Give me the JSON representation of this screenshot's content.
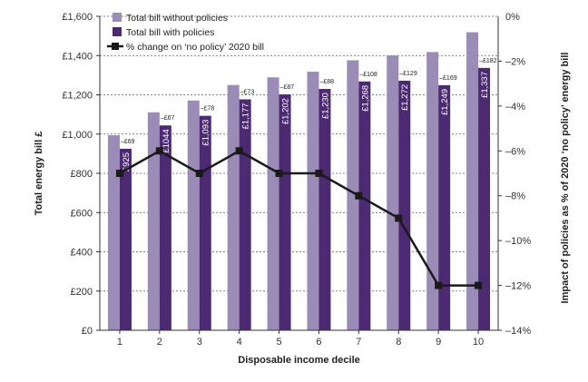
{
  "chart_data": {
    "type": "bar",
    "categories": [
      "1",
      "2",
      "3",
      "4",
      "5",
      "6",
      "7",
      "8",
      "9",
      "10"
    ],
    "xlabel": "Disposable income decile",
    "ylabel": "Total energy bill £",
    "y2label": "Impact of policies as % of 2020 ‘no policy’ energy bill",
    "ylim": [
      0,
      1600
    ],
    "y2lim": [
      -14,
      0
    ],
    "yticks": [
      "£0",
      "£200",
      "£400",
      "£600",
      "£800",
      "£1,000",
      "£1,200",
      "£1,400",
      "£1,600"
    ],
    "y2ticks": [
      "0%",
      "–2%",
      "–4%",
      "–6%",
      "–8%",
      "–10%",
      "–12%",
      "–14%"
    ],
    "legend_position": "top-left",
    "grid": "horizontal dashed",
    "series": [
      {
        "name": "Total bill without policies",
        "color": "#9a8cb6",
        "values": [
          994,
          1111,
          1171,
          1250,
          1289,
          1318,
          1376,
          1401,
          1418,
          1519
        ]
      },
      {
        "name": "Total bill with policies",
        "color": "#4b2a72",
        "values": [
          925,
          1044,
          1093,
          1177,
          1202,
          1230,
          1268,
          1272,
          1249,
          1337
        ],
        "labels": [
          "£925",
          "£1044",
          "£1,093",
          "£1,177",
          "£1,202",
          "£1,230",
          "£1,268",
          "£1,272",
          "£1,249",
          "£1,337"
        ]
      },
      {
        "name": "% change on ‘no policy’ 2020 bill",
        "type": "line",
        "axis": "right",
        "color": "#1a1a1a",
        "values": [
          -7,
          -6,
          -7,
          -6,
          -7,
          -7,
          -8,
          -9,
          -12,
          -12
        ]
      }
    ],
    "annotations": [
      "–£69",
      "–£67",
      "–£78",
      "–£73",
      "–£87",
      "–£88",
      "–£108",
      "–£129",
      "–£169",
      "–£182"
    ]
  }
}
